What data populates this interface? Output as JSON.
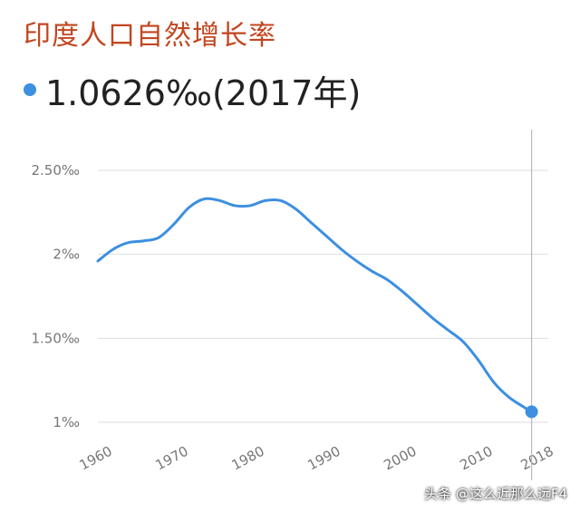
{
  "title": "印度人口自然增长率",
  "headline": {
    "value": "1.0626‰(2017年)",
    "dot_color": "#3d8fe0"
  },
  "watermark": "头条 @这么近那么远F4",
  "colors": {
    "line": "#3d8fe0",
    "grid": "#dddddd",
    "tick_text": "#777777",
    "cursor": "#bbbbbb"
  },
  "chart_data": {
    "type": "line",
    "title": "",
    "xlabel": "",
    "ylabel": "",
    "x_ticks": [
      {
        "value": 1960,
        "label": "1960"
      },
      {
        "value": 1970,
        "label": "1970"
      },
      {
        "value": 1980,
        "label": "1980"
      },
      {
        "value": 1990,
        "label": "1990"
      },
      {
        "value": 2000,
        "label": "2000"
      },
      {
        "value": 2010,
        "label": "2010"
      },
      {
        "value": 2018,
        "label": "2018"
      }
    ],
    "y_ticks": [
      {
        "value": 1.0,
        "label": "1‰"
      },
      {
        "value": 1.5,
        "label": "1.50‰"
      },
      {
        "value": 2.0,
        "label": "2‰"
      },
      {
        "value": 2.5,
        "label": "2.50‰"
      }
    ],
    "xlim": [
      1960,
      2018
    ],
    "ylim": [
      1.0,
      2.5
    ],
    "grid": true,
    "highlight": {
      "x": 2017,
      "y": 1.0626
    },
    "series": [
      {
        "values": [
          [
            1960,
            1.96
          ],
          [
            1962,
            2.03
          ],
          [
            1964,
            2.07
          ],
          [
            1966,
            2.08
          ],
          [
            1968,
            2.1
          ],
          [
            1970,
            2.18
          ],
          [
            1972,
            2.28
          ],
          [
            1974,
            2.33
          ],
          [
            1976,
            2.32
          ],
          [
            1978,
            2.29
          ],
          [
            1980,
            2.29
          ],
          [
            1982,
            2.32
          ],
          [
            1984,
            2.32
          ],
          [
            1986,
            2.27
          ],
          [
            1988,
            2.19
          ],
          [
            1990,
            2.11
          ],
          [
            1992,
            2.03
          ],
          [
            1994,
            1.96
          ],
          [
            1996,
            1.9
          ],
          [
            1998,
            1.85
          ],
          [
            2000,
            1.78
          ],
          [
            2002,
            1.7
          ],
          [
            2004,
            1.62
          ],
          [
            2006,
            1.55
          ],
          [
            2008,
            1.48
          ],
          [
            2010,
            1.37
          ],
          [
            2012,
            1.24
          ],
          [
            2014,
            1.15
          ],
          [
            2016,
            1.09
          ],
          [
            2017,
            1.0626
          ]
        ]
      }
    ]
  }
}
